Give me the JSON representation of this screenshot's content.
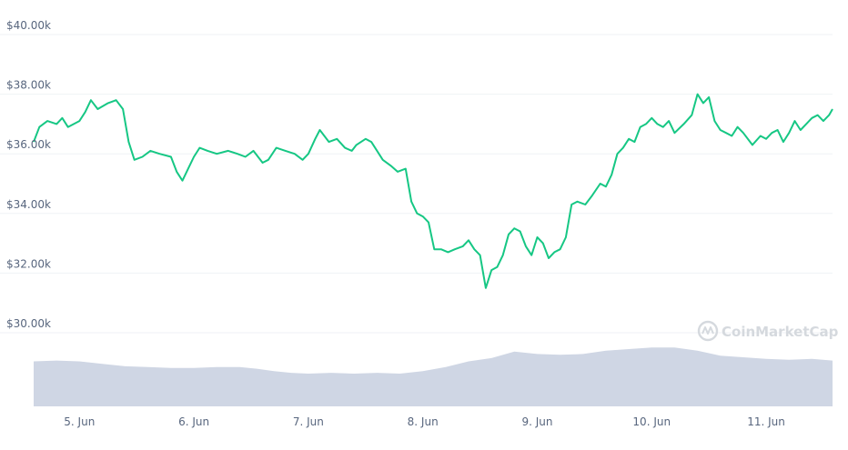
{
  "chart_data": {
    "type": "line",
    "brand_color": "#16c784",
    "volume_color": "#cfd6e4",
    "grid": true,
    "y_tick_labels": [
      "$40.00k",
      "$38.00k",
      "$36.00k",
      "$34.00k",
      "$32.00k",
      "$30.00k"
    ],
    "y_tick_values": [
      40000,
      38000,
      36000,
      34000,
      32000,
      30000
    ],
    "ylim": [
      28000,
      40000
    ],
    "x_tick_labels": [
      "5. Jun",
      "6. Jun",
      "7. Jun",
      "8. Jun",
      "9. Jun",
      "10. Jun",
      "11. Jun"
    ],
    "x_tick_values": [
      5,
      6,
      7,
      8,
      9,
      10,
      11
    ],
    "xlim": [
      4.6,
      11.58
    ],
    "series": [
      {
        "values": [
          [
            4.6,
            36400
          ],
          [
            4.65,
            36900
          ],
          [
            4.72,
            37100
          ],
          [
            4.8,
            37000
          ],
          [
            4.85,
            37200
          ],
          [
            4.9,
            36900
          ],
          [
            5.0,
            37100
          ],
          [
            5.05,
            37400
          ],
          [
            5.1,
            37800
          ],
          [
            5.16,
            37500
          ],
          [
            5.25,
            37700
          ],
          [
            5.32,
            37800
          ],
          [
            5.38,
            37500
          ],
          [
            5.43,
            36400
          ],
          [
            5.48,
            35800
          ],
          [
            5.55,
            35900
          ],
          [
            5.62,
            36100
          ],
          [
            5.7,
            36000
          ],
          [
            5.8,
            35900
          ],
          [
            5.85,
            35400
          ],
          [
            5.9,
            35100
          ],
          [
            5.95,
            35500
          ],
          [
            6.0,
            35900
          ],
          [
            6.05,
            36200
          ],
          [
            6.12,
            36100
          ],
          [
            6.2,
            36000
          ],
          [
            6.3,
            36100
          ],
          [
            6.38,
            36000
          ],
          [
            6.45,
            35900
          ],
          [
            6.52,
            36100
          ],
          [
            6.6,
            35700
          ],
          [
            6.65,
            35800
          ],
          [
            6.72,
            36200
          ],
          [
            6.8,
            36100
          ],
          [
            6.88,
            36000
          ],
          [
            6.95,
            35800
          ],
          [
            7.0,
            36000
          ],
          [
            7.06,
            36500
          ],
          [
            7.1,
            36800
          ],
          [
            7.18,
            36400
          ],
          [
            7.25,
            36500
          ],
          [
            7.32,
            36200
          ],
          [
            7.38,
            36100
          ],
          [
            7.42,
            36300
          ],
          [
            7.5,
            36500
          ],
          [
            7.55,
            36400
          ],
          [
            7.6,
            36100
          ],
          [
            7.65,
            35800
          ],
          [
            7.72,
            35600
          ],
          [
            7.78,
            35400
          ],
          [
            7.85,
            35500
          ],
          [
            7.9,
            34400
          ],
          [
            7.95,
            34000
          ],
          [
            8.0,
            33900
          ],
          [
            8.05,
            33700
          ],
          [
            8.1,
            32800
          ],
          [
            8.16,
            32800
          ],
          [
            8.22,
            32700
          ],
          [
            8.28,
            32800
          ],
          [
            8.35,
            32900
          ],
          [
            8.4,
            33100
          ],
          [
            8.45,
            32800
          ],
          [
            8.5,
            32600
          ],
          [
            8.55,
            31500
          ],
          [
            8.6,
            32100
          ],
          [
            8.65,
            32200
          ],
          [
            8.7,
            32600
          ],
          [
            8.75,
            33300
          ],
          [
            8.8,
            33500
          ],
          [
            8.85,
            33400
          ],
          [
            8.9,
            32900
          ],
          [
            8.95,
            32600
          ],
          [
            9.0,
            33200
          ],
          [
            9.05,
            33000
          ],
          [
            9.1,
            32500
          ],
          [
            9.15,
            32700
          ],
          [
            9.2,
            32800
          ],
          [
            9.25,
            33200
          ],
          [
            9.3,
            34300
          ],
          [
            9.35,
            34400
          ],
          [
            9.42,
            34300
          ],
          [
            9.48,
            34600
          ],
          [
            9.55,
            35000
          ],
          [
            9.6,
            34900
          ],
          [
            9.65,
            35300
          ],
          [
            9.7,
            36000
          ],
          [
            9.75,
            36200
          ],
          [
            9.8,
            36500
          ],
          [
            9.85,
            36400
          ],
          [
            9.9,
            36900
          ],
          [
            9.95,
            37000
          ],
          [
            10.0,
            37200
          ],
          [
            10.05,
            37000
          ],
          [
            10.1,
            36900
          ],
          [
            10.15,
            37100
          ],
          [
            10.2,
            36700
          ],
          [
            10.28,
            37000
          ],
          [
            10.35,
            37300
          ],
          [
            10.4,
            38000
          ],
          [
            10.45,
            37700
          ],
          [
            10.5,
            37900
          ],
          [
            10.55,
            37100
          ],
          [
            10.6,
            36800
          ],
          [
            10.65,
            36700
          ],
          [
            10.7,
            36600
          ],
          [
            10.75,
            36900
          ],
          [
            10.8,
            36700
          ],
          [
            10.88,
            36300
          ],
          [
            10.95,
            36600
          ],
          [
            11.0,
            36500
          ],
          [
            11.05,
            36700
          ],
          [
            11.1,
            36800
          ],
          [
            11.15,
            36400
          ],
          [
            11.2,
            36700
          ],
          [
            11.25,
            37100
          ],
          [
            11.3,
            36800
          ],
          [
            11.35,
            37000
          ],
          [
            11.4,
            37200
          ],
          [
            11.45,
            37300
          ],
          [
            11.5,
            37100
          ],
          [
            11.55,
            37300
          ],
          [
            11.58,
            37500
          ]
        ]
      }
    ],
    "volume": [
      [
        4.6,
        0.55
      ],
      [
        4.8,
        0.56
      ],
      [
        5.0,
        0.55
      ],
      [
        5.2,
        0.52
      ],
      [
        5.4,
        0.49
      ],
      [
        5.6,
        0.48
      ],
      [
        5.8,
        0.47
      ],
      [
        6.0,
        0.47
      ],
      [
        6.2,
        0.48
      ],
      [
        6.4,
        0.48
      ],
      [
        6.55,
        0.46
      ],
      [
        6.7,
        0.43
      ],
      [
        6.85,
        0.41
      ],
      [
        7.0,
        0.4
      ],
      [
        7.2,
        0.41
      ],
      [
        7.4,
        0.4
      ],
      [
        7.6,
        0.41
      ],
      [
        7.8,
        0.4
      ],
      [
        8.0,
        0.43
      ],
      [
        8.2,
        0.48
      ],
      [
        8.4,
        0.55
      ],
      [
        8.6,
        0.59
      ],
      [
        8.8,
        0.67
      ],
      [
        9.0,
        0.64
      ],
      [
        9.2,
        0.63
      ],
      [
        9.4,
        0.64
      ],
      [
        9.6,
        0.68
      ],
      [
        9.8,
        0.7
      ],
      [
        10.0,
        0.72
      ],
      [
        10.2,
        0.72
      ],
      [
        10.4,
        0.68
      ],
      [
        10.6,
        0.62
      ],
      [
        10.8,
        0.6
      ],
      [
        11.0,
        0.58
      ],
      [
        11.2,
        0.57
      ],
      [
        11.4,
        0.58
      ],
      [
        11.58,
        0.56
      ]
    ]
  },
  "watermark": {
    "brand": "CoinMarketCap"
  }
}
